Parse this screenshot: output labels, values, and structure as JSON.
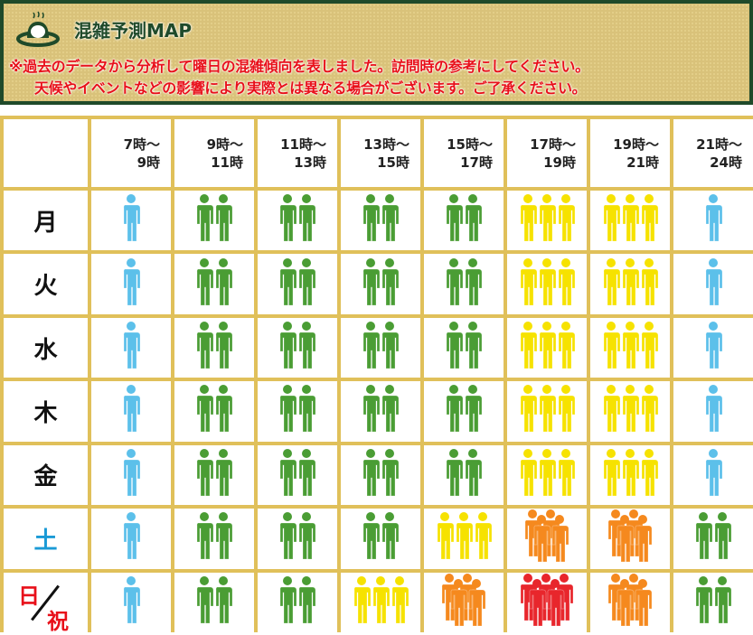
{
  "header": {
    "title": "混雑予測MAP",
    "note_line1": "※過去のデータから分析して曜日の混雑傾向を表しました。訪問時の参考にしてください。",
    "note_line2": "天候やイベントなどの影響により実際とは異なる場合がございます。ご了承ください。"
  },
  "columns": [
    [
      "7時～",
      "9時"
    ],
    [
      "9時～",
      "11時"
    ],
    [
      "11時～",
      "13時"
    ],
    [
      "13時～",
      "15時"
    ],
    [
      "15時～",
      "17時"
    ],
    [
      "17時～",
      "19時"
    ],
    [
      "19時～",
      "21時"
    ],
    [
      "21時～",
      "24時"
    ]
  ],
  "days": [
    {
      "label": "月",
      "levels": [
        1,
        2,
        2,
        2,
        2,
        3,
        3,
        1
      ]
    },
    {
      "label": "火",
      "levels": [
        1,
        2,
        2,
        2,
        2,
        3,
        3,
        1
      ]
    },
    {
      "label": "水",
      "levels": [
        1,
        2,
        2,
        2,
        2,
        3,
        3,
        1
      ]
    },
    {
      "label": "木",
      "levels": [
        1,
        2,
        2,
        2,
        2,
        3,
        3,
        1
      ]
    },
    {
      "label": "金",
      "levels": [
        1,
        2,
        2,
        2,
        2,
        3,
        3,
        1
      ]
    },
    {
      "label": "土",
      "levels": [
        1,
        2,
        2,
        2,
        3,
        4,
        4,
        2
      ]
    },
    {
      "label": "日",
      "label2": "祝",
      "levels": [
        1,
        2,
        2,
        3,
        4,
        5,
        4,
        2
      ]
    }
  ],
  "level_colors": {
    "1": "#5cc0ea",
    "2": "#4a9d34",
    "3": "#f6e200",
    "4": "#f5891e",
    "5": "#e8262c"
  }
}
